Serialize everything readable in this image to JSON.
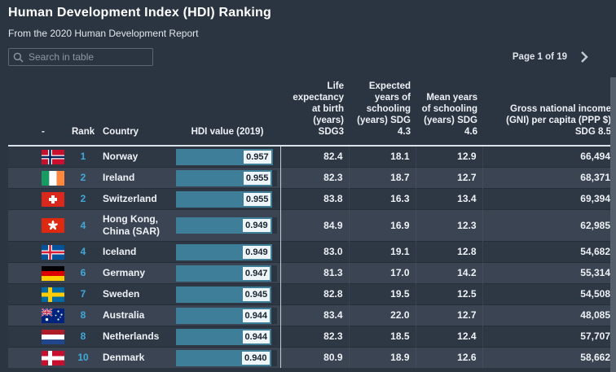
{
  "header": {
    "title": "Human Development Index (HDI) Ranking",
    "subtitle": "From the 2020 Human Development Report"
  },
  "toolbar": {
    "search_placeholder": "Search in table",
    "page_label": "Page 1 of 19"
  },
  "table": {
    "columns": [
      {
        "label": "-"
      },
      {
        "label": "Rank"
      },
      {
        "label": "Country"
      },
      {
        "label": "HDI value (2019)"
      },
      {
        "label": "Life expectancy at birth (years) SDG3"
      },
      {
        "label": "Expected years of schooling (years) SDG 4.3"
      },
      {
        "label": "Mean years of schooling (years) SDG 4.6"
      },
      {
        "label": "Gross national income (GNI) per capita (PPP $) SDG 8.5"
      }
    ],
    "rows": [
      {
        "flag": "norway",
        "rank": "1",
        "country": "Norway",
        "hdi": "0.957",
        "life": "82.4",
        "eys": "18.1",
        "mys": "12.9",
        "gni": "66,494"
      },
      {
        "flag": "ireland",
        "rank": "2",
        "country": "Ireland",
        "hdi": "0.955",
        "life": "82.3",
        "eys": "18.7",
        "mys": "12.7",
        "gni": "68,371"
      },
      {
        "flag": "switzerland",
        "rank": "2",
        "country": "Switzerland",
        "hdi": "0.955",
        "life": "83.8",
        "eys": "16.3",
        "mys": "13.4",
        "gni": "69,394"
      },
      {
        "flag": "hongkong",
        "rank": "4",
        "country": "Hong Kong, China (SAR)",
        "hdi": "0.949",
        "life": "84.9",
        "eys": "16.9",
        "mys": "12.3",
        "gni": "62,985"
      },
      {
        "flag": "iceland",
        "rank": "4",
        "country": "Iceland",
        "hdi": "0.949",
        "life": "83.0",
        "eys": "19.1",
        "mys": "12.8",
        "gni": "54,682"
      },
      {
        "flag": "germany",
        "rank": "6",
        "country": "Germany",
        "hdi": "0.947",
        "life": "81.3",
        "eys": "17.0",
        "mys": "14.2",
        "gni": "55,314"
      },
      {
        "flag": "sweden",
        "rank": "7",
        "country": "Sweden",
        "hdi": "0.945",
        "life": "82.8",
        "eys": "19.5",
        "mys": "12.5",
        "gni": "54,508"
      },
      {
        "flag": "australia",
        "rank": "8",
        "country": "Australia",
        "hdi": "0.944",
        "life": "83.4",
        "eys": "22.0",
        "mys": "12.7",
        "gni": "48,085"
      },
      {
        "flag": "netherlands",
        "rank": "8",
        "country": "Netherlands",
        "hdi": "0.944",
        "life": "82.3",
        "eys": "18.5",
        "mys": "12.4",
        "gni": "57,707"
      },
      {
        "flag": "denmark",
        "rank": "10",
        "country": "Denmark",
        "hdi": "0.940",
        "life": "80.9",
        "eys": "18.9",
        "mys": "12.6",
        "gni": "58,662"
      }
    ]
  },
  "flags": {
    "norway": {
      "kind": "nordic",
      "bg": "#c8102e",
      "outer": "#ffffff",
      "inner": "#00205b"
    },
    "ireland": {
      "kind": "vbands",
      "colors": [
        "#169b62",
        "#ffffff",
        "#ff883e"
      ]
    },
    "switzerland": {
      "kind": "cross",
      "bg": "#da291c",
      "cross": "#ffffff"
    },
    "hongkong": {
      "kind": "emblem",
      "bg": "#de2910",
      "emblem": "#ffffff"
    },
    "iceland": {
      "kind": "nordic",
      "bg": "#02529c",
      "outer": "#ffffff",
      "inner": "#dc1e35"
    },
    "germany": {
      "kind": "hbands",
      "colors": [
        "#000000",
        "#dd0000",
        "#ffce00"
      ]
    },
    "sweden": {
      "kind": "nordic",
      "bg": "#006aa7",
      "outer": "#fecc02",
      "inner": "#fecc02"
    },
    "australia": {
      "kind": "aussie",
      "bg": "#00247d",
      "jack": "#ffffff",
      "jack_red": "#c8102e",
      "stars": "#ffffff"
    },
    "netherlands": {
      "kind": "hbands",
      "colors": [
        "#ae1c28",
        "#ffffff",
        "#21468b"
      ]
    },
    "denmark": {
      "kind": "nordic",
      "bg": "#c8102e",
      "outer": "#ffffff",
      "inner": "#ffffff"
    }
  },
  "colors": {
    "page_bg": "#2b3542",
    "row_dark": "#2e3744",
    "row_light": "#3b4452",
    "bar_fill": "#3e7e99",
    "bar_track": "#2b3541",
    "bar_label_bg": "#edf5f9",
    "bar_label_text": "#19242f",
    "rank_text": "#41a9da",
    "text_main": "#eef2f6",
    "text_muted": "#8d96a2",
    "header_line": "#dbe1e8",
    "col_sep": "#c3cbd4",
    "divider": "#242d38",
    "scrollbar": "#55606c"
  }
}
